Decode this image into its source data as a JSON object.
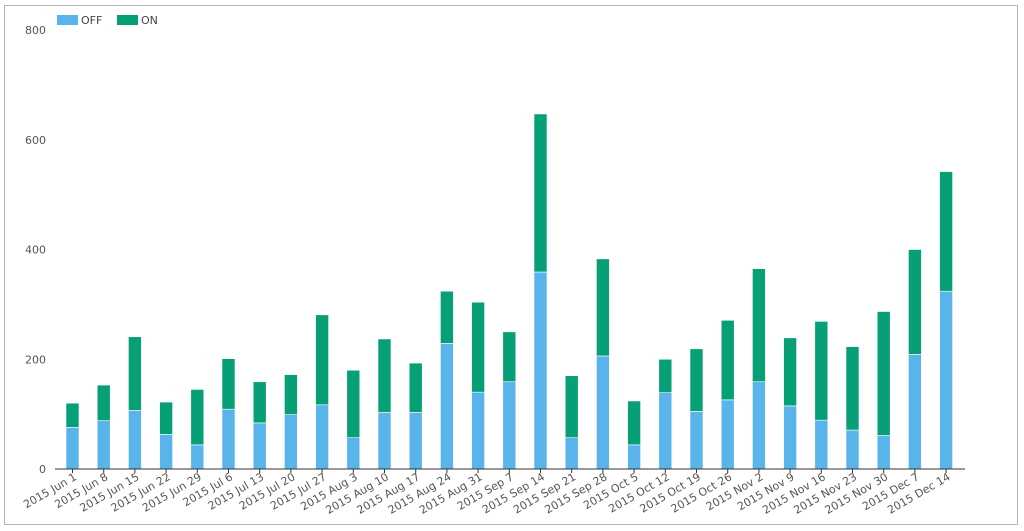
{
  "chart_data": {
    "type": "bar",
    "stacked": true,
    "legend_position": "top-left",
    "grid": false,
    "ylim": [
      0,
      800
    ],
    "yticks": [
      0,
      200,
      400,
      600,
      800
    ],
    "categories": [
      "2015 Jun 1",
      "2015 Jun 8",
      "2015 Jun 15",
      "2015 Jun 22",
      "2015 Jun 29",
      "2015 Jul 6",
      "2015 Jul 13",
      "2015 Jul 20",
      "2015 Jul 27",
      "2015 Aug 3",
      "2015 Aug 10",
      "2015 Aug 17",
      "2015 Aug 24",
      "2015 Aug 31",
      "2015 Sep 7",
      "2015 Sep 14",
      "2015 Sep 21",
      "2015 Sep 28",
      "2015 Oct 5",
      "2015 Oct 12",
      "2015 Oct 19",
      "2015 Oct 26",
      "2015 Nov 2",
      "2015 Nov 9",
      "2015 Nov 16",
      "2015 Nov 23",
      "2015 Nov 30",
      "2015 Dec 7",
      "2015 Dec 14"
    ],
    "series": [
      {
        "name": "OFF",
        "color": "#5ab4ec",
        "values": [
          76,
          88,
          107,
          63,
          44,
          109,
          84,
          99,
          117,
          57,
          103,
          103,
          229,
          140,
          159,
          359,
          57,
          206,
          44,
          139,
          105,
          126,
          159,
          115,
          89,
          71,
          61,
          209,
          324
        ]
      },
      {
        "name": "ON",
        "color": "#069f76",
        "values": [
          44,
          65,
          134,
          59,
          101,
          92,
          75,
          73,
          164,
          123,
          134,
          90,
          95,
          164,
          91,
          288,
          113,
          177,
          80,
          61,
          114,
          145,
          206,
          124,
          180,
          152,
          226,
          191,
          218
        ]
      }
    ]
  }
}
